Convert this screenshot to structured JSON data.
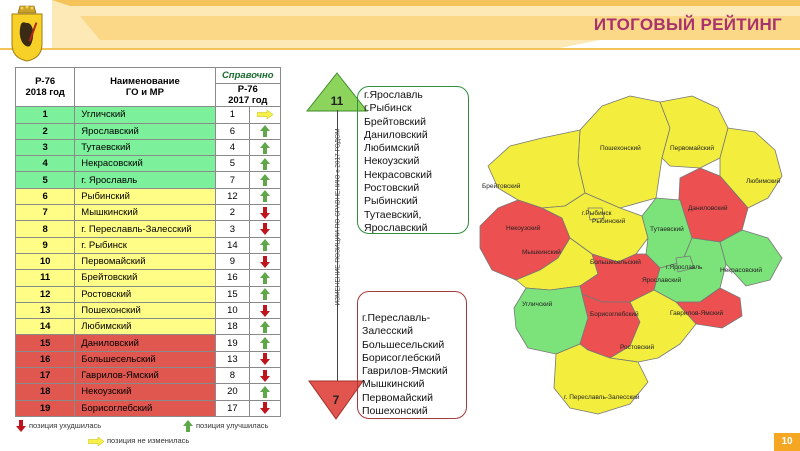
{
  "header": {
    "title": "ИТОГОВЫЙ РЕЙТИНГ"
  },
  "table": {
    "col_rank": [
      "Р-76",
      "2018 год"
    ],
    "col_name": [
      "Наименование",
      "ГО и МР"
    ],
    "col_ref": "Справочно",
    "col_prev": [
      "Р-76",
      "2017 год"
    ],
    "rows": [
      {
        "rank": "1",
        "name": "Угличский",
        "prev": "1",
        "trend": "same",
        "color": "green"
      },
      {
        "rank": "2",
        "name": "Ярославский",
        "prev": "6",
        "trend": "up",
        "color": "green"
      },
      {
        "rank": "3",
        "name": "Тутаевский",
        "prev": "4",
        "trend": "up",
        "color": "green"
      },
      {
        "rank": "4",
        "name": "Некрасовский",
        "prev": "5",
        "trend": "up",
        "color": "green"
      },
      {
        "rank": "5",
        "name": "г. Ярославль",
        "prev": "7",
        "trend": "up",
        "color": "green"
      },
      {
        "rank": "6",
        "name": "Рыбинский",
        "prev": "12",
        "trend": "up",
        "color": "yellow"
      },
      {
        "rank": "7",
        "name": "Мышкинский",
        "prev": "2",
        "trend": "down",
        "color": "yellow"
      },
      {
        "rank": "8",
        "name": "г. Переславль-Залесский",
        "prev": "3",
        "trend": "down",
        "color": "yellow"
      },
      {
        "rank": "9",
        "name": "г. Рыбинск",
        "prev": "14",
        "trend": "up",
        "color": "yellow"
      },
      {
        "rank": "10",
        "name": "Первомайский",
        "prev": "9",
        "trend": "down",
        "color": "yellow"
      },
      {
        "rank": "11",
        "name": "Брейтовский",
        "prev": "16",
        "trend": "up",
        "color": "yellow"
      },
      {
        "rank": "12",
        "name": "Ростовский",
        "prev": "15",
        "trend": "up",
        "color": "yellow"
      },
      {
        "rank": "13",
        "name": "Пошехонский",
        "prev": "10",
        "trend": "down",
        "color": "yellow"
      },
      {
        "rank": "14",
        "name": "Любимский",
        "prev": "18",
        "trend": "up",
        "color": "yellow"
      },
      {
        "rank": "15",
        "name": "Даниловский",
        "prev": "19",
        "trend": "up",
        "color": "red"
      },
      {
        "rank": "16",
        "name": "Большесельский",
        "prev": "13",
        "trend": "down",
        "color": "red"
      },
      {
        "rank": "17",
        "name": "Гаврилов-Ямский",
        "prev": "8",
        "trend": "down",
        "color": "red"
      },
      {
        "rank": "18",
        "name": "Некоузский",
        "prev": "20",
        "trend": "up",
        "color": "red"
      },
      {
        "rank": "19",
        "name": "Борисоглебский",
        "prev": "17",
        "trend": "down",
        "color": "red"
      }
    ]
  },
  "legend": {
    "down": "позиция ухудшилась",
    "up": "позиция улучшилась",
    "same": "позиция не изменилась"
  },
  "improved": {
    "count": "11",
    "items": [
      "г.Ярославль",
      "г.Рыбинск",
      "Брейтовский",
      "Даниловский",
      "Любимский",
      "Некоузский",
      "Некрасовский",
      "Ростовский",
      "Рыбинский",
      "Тутаевский,",
      "Ярославский"
    ]
  },
  "worsened": {
    "count": "7",
    "items": [
      "г.Переславль-",
      "Залесский",
      "Большесельский",
      "Борисоглебский",
      "Гаврилов-Ямский",
      "Мышкинский",
      "Первомайский",
      "Пошехонский"
    ]
  },
  "axis_text": "ИЗМЕНЕНИЕ ПОЗИЦИИ ПО СРАВНЕНИЮ с 2017 ГОДОМ",
  "map_labels": {
    "poshekhonsky": "Пошехонский",
    "pervomaisky": "Первомайский",
    "breitovsky": "Брейтовский",
    "lyubimsky": "Любимский",
    "nekouzsky": "Некоузский",
    "danilovsky": "Даниловский",
    "g_rybinsk": "г.Рыбинск",
    "rybinsky": "Рыбинский",
    "tutaevsky": "Тутаевский",
    "myshkinsky": "Мышкинский",
    "bolsheselsky": "Большесельский",
    "g_yaroslavl": "г.Ярославль",
    "nekrasovsky": "Некрасовский",
    "yaroslavsky": "Ярославский",
    "uglichsky": "Угличский",
    "borisoglebsky": "Борисоглебский",
    "gavrilov_yamsky": "Гаврилов-Ямский",
    "rostovsky": "Ростовский",
    "g_pereslavl": "г. Переславль-Залесский"
  },
  "colors": {
    "green": "#7cf09a",
    "yellow": "#fffd86",
    "red": "#e0574f",
    "map_green": "#7be37a",
    "map_yellow": "#f3ee3e",
    "map_red": "#ec5050"
  },
  "page_number": "10"
}
